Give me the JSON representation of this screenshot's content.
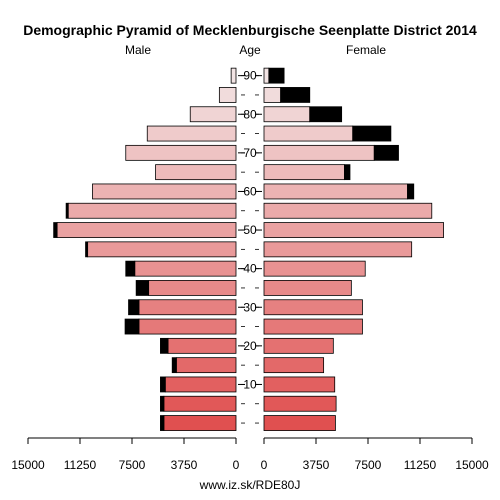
{
  "chart_data": {
    "type": "bar",
    "title": "Demographic Pyramid of Mecklenburgische Seenplatte District 2014",
    "left_label": "Male",
    "center_label": "Age",
    "right_label": "Female",
    "footer": "www.iz.sk/RDE80J",
    "x_max": 15000,
    "x_ticks": [
      0,
      3750,
      7500,
      11250,
      15000
    ],
    "age_ticks": [
      10,
      20,
      30,
      40,
      50,
      60,
      70,
      80,
      90
    ],
    "age_groups": [
      "0-4",
      "5-9",
      "10-14",
      "15-19",
      "20-24",
      "25-29",
      "30-34",
      "35-39",
      "40-44",
      "45-49",
      "50-54",
      "55-59",
      "60-64",
      "65-69",
      "70-74",
      "75-79",
      "80-84",
      "85-89",
      "90+"
    ],
    "male": [
      {
        "light": 5200,
        "dark": 250
      },
      {
        "light": 5200,
        "dark": 250
      },
      {
        "light": 5100,
        "dark": 350
      },
      {
        "light": 4300,
        "dark": 300
      },
      {
        "light": 4900,
        "dark": 550
      },
      {
        "light": 7000,
        "dark": 1000
      },
      {
        "light": 7000,
        "dark": 750
      },
      {
        "light": 6300,
        "dark": 900
      },
      {
        "light": 7300,
        "dark": 650
      },
      {
        "light": 10700,
        "dark": 150
      },
      {
        "light": 12900,
        "dark": 250
      },
      {
        "light": 12100,
        "dark": 150
      },
      {
        "light": 10350,
        "dark": 0
      },
      {
        "light": 5800,
        "dark": 0
      },
      {
        "light": 7950,
        "dark": 0
      },
      {
        "light": 6400,
        "dark": 0
      },
      {
        "light": 3300,
        "dark": 0
      },
      {
        "light": 1200,
        "dark": 0
      },
      {
        "light": 350,
        "dark": 0
      }
    ],
    "female": [
      {
        "light": 5150,
        "dark": 0
      },
      {
        "light": 5200,
        "dark": 0
      },
      {
        "light": 5100,
        "dark": 0
      },
      {
        "light": 4300,
        "dark": 0
      },
      {
        "light": 5000,
        "dark": 0
      },
      {
        "light": 7100,
        "dark": 0
      },
      {
        "light": 7100,
        "dark": 0
      },
      {
        "light": 6300,
        "dark": 0
      },
      {
        "light": 7300,
        "dark": 0
      },
      {
        "light": 10650,
        "dark": 0
      },
      {
        "light": 12950,
        "dark": 0
      },
      {
        "light": 12100,
        "dark": 0
      },
      {
        "light": 10350,
        "dark": 450
      },
      {
        "light": 5800,
        "dark": 400
      },
      {
        "light": 7950,
        "dark": 1750
      },
      {
        "light": 6400,
        "dark": 2750
      },
      {
        "light": 3300,
        "dark": 2300
      },
      {
        "light": 1200,
        "dark": 2100
      },
      {
        "light": 350,
        "dark": 1100
      }
    ]
  }
}
